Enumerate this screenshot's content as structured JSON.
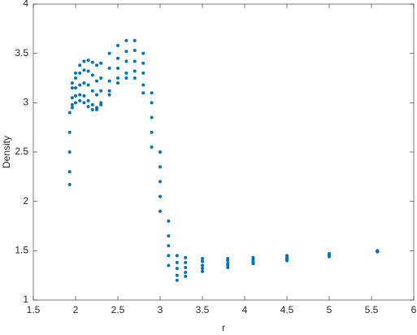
{
  "chart_data": {
    "type": "scatter",
    "xlabel": "r",
    "ylabel": "Density",
    "color": "#0072bd",
    "xlim": [
      1.5,
      6
    ],
    "ylim": [
      1,
      4
    ],
    "xticks": [
      1.5,
      2,
      2.5,
      3,
      3.5,
      4,
      4.5,
      5,
      5.5,
      6
    ],
    "yticks": [
      1,
      1.5,
      2,
      2.5,
      3,
      3.5,
      4
    ],
    "x": [
      1.93,
      1.96,
      2.0,
      2.05,
      2.1,
      2.15,
      2.2,
      2.25,
      2.3,
      2.4,
      2.5,
      2.6,
      2.7,
      2.8,
      2.9,
      3.0,
      3.1,
      3.2,
      3.3,
      3.5,
      3.8,
      4.1,
      4.5,
      5.0,
      5.57,
      1.93,
      1.96,
      2.0,
      2.05,
      2.1,
      2.15,
      2.2,
      2.25,
      2.3,
      2.4,
      2.5,
      2.6,
      2.7,
      2.8,
      2.9,
      3.0,
      3.1,
      3.2,
      3.3,
      3.5,
      3.8,
      4.1,
      4.5,
      5.0,
      5.57,
      1.93,
      1.96,
      2.0,
      2.05,
      2.1,
      2.15,
      2.2,
      2.25,
      2.3,
      2.4,
      2.5,
      2.6,
      2.7,
      2.8,
      2.9,
      3.0,
      3.1,
      3.2,
      3.3,
      3.5,
      3.8,
      4.1,
      4.5,
      5.0,
      5.57,
      1.93,
      1.96,
      2.0,
      2.05,
      2.1,
      2.15,
      2.2,
      2.25,
      2.3,
      2.4,
      2.5,
      2.6,
      2.7,
      2.8,
      2.9,
      3.0,
      3.1,
      3.2,
      3.3,
      3.5,
      3.8,
      4.1,
      4.5,
      5.0,
      5.57,
      1.93,
      1.96,
      2.0,
      2.05,
      2.1,
      2.15,
      2.2,
      2.25,
      2.3,
      2.4,
      2.5,
      2.6,
      2.7,
      2.8,
      2.9,
      3.0,
      3.1,
      3.2,
      3.3,
      3.5,
      3.8,
      4.1,
      4.5,
      5.0,
      5.57
    ],
    "values": [
      2.17,
      3.2,
      3.3,
      3.38,
      3.42,
      3.43,
      3.41,
      3.38,
      3.4,
      3.5,
      3.58,
      3.63,
      3.63,
      3.5,
      3.1,
      2.5,
      1.8,
      1.45,
      1.43,
      1.42,
      1.42,
      1.43,
      1.45,
      1.47,
      1.5,
      2.3,
      3.15,
      3.25,
      3.3,
      3.33,
      3.32,
      3.28,
      3.22,
      3.25,
      3.35,
      3.45,
      3.52,
      3.53,
      3.4,
      3.0,
      2.35,
      1.65,
      1.38,
      1.38,
      1.39,
      1.4,
      1.41,
      1.43,
      1.46,
      1.5,
      2.5,
      3.05,
      3.15,
      3.18,
      3.2,
      3.18,
      3.12,
      3.08,
      3.12,
      3.22,
      3.35,
      3.42,
      3.42,
      3.3,
      2.85,
      2.2,
      1.55,
      1.32,
      1.33,
      1.35,
      1.37,
      1.39,
      1.42,
      1.45,
      1.49,
      2.7,
      2.98,
      3.07,
      3.08,
      3.07,
      3.02,
      2.98,
      2.95,
      3.0,
      3.12,
      3.25,
      3.3,
      3.32,
      3.18,
      2.7,
      2.05,
      1.45,
      1.25,
      1.28,
      1.32,
      1.35,
      1.38,
      1.41,
      1.45,
      1.49,
      2.9,
      2.95,
      3.0,
      3.02,
      3.0,
      2.96,
      2.93,
      2.93,
      2.98,
      3.08,
      3.2,
      3.25,
      3.25,
      3.1,
      2.55,
      1.9,
      1.35,
      1.2,
      1.24,
      1.29,
      1.33,
      1.37,
      1.4,
      1.44,
      1.49
    ]
  }
}
